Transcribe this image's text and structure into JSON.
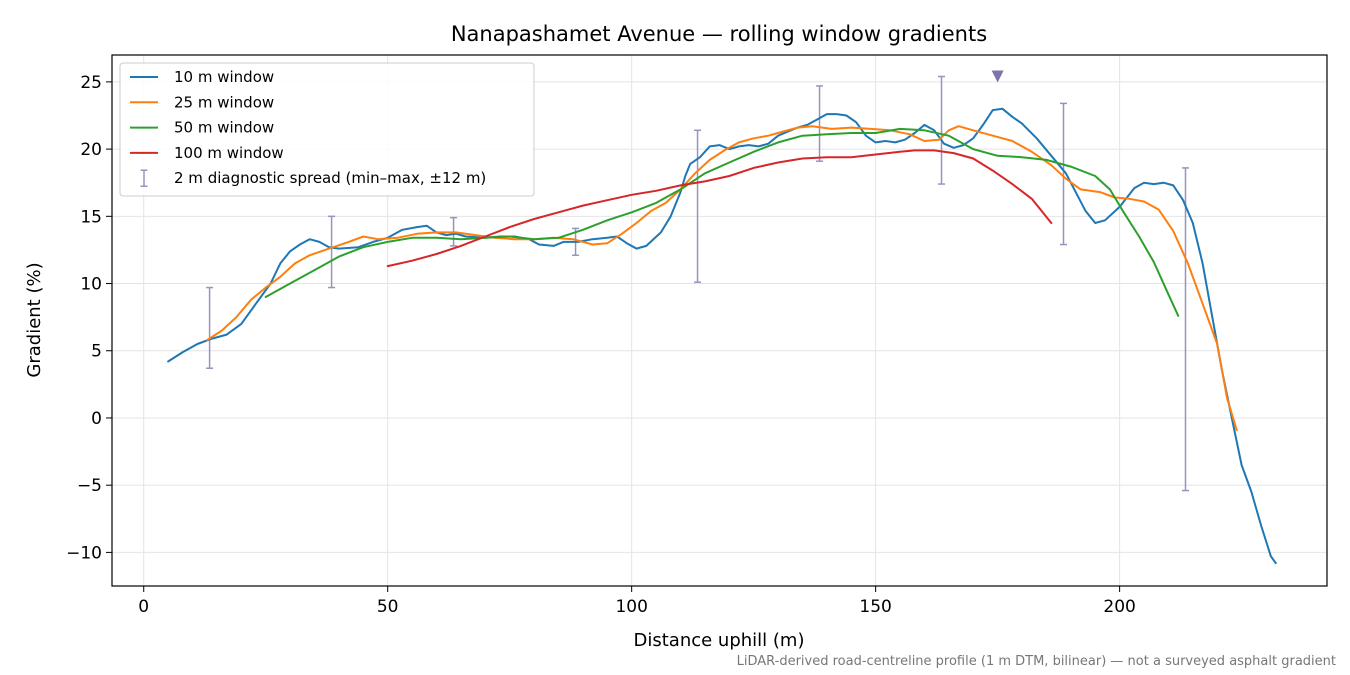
{
  "chart_data": {
    "type": "line",
    "title": "Nanapashamet Avenue — rolling window gradients",
    "xlabel": "Distance uphill (m)",
    "ylabel": "Gradient (%)",
    "xlim": [
      -6.5,
      242.5
    ],
    "ylim": [
      -12.5,
      27
    ],
    "x_ticks": [
      0,
      50,
      100,
      150,
      200
    ],
    "y_ticks": [
      -10,
      -5,
      0,
      5,
      10,
      15,
      20,
      25
    ],
    "x_tick_labels": [
      "0",
      "50",
      "100",
      "150",
      "200"
    ],
    "y_tick_labels": [
      "−10",
      "−5",
      "0",
      "5",
      "10",
      "15",
      "20",
      "25"
    ],
    "grid": true,
    "legend_position": "top-left",
    "series": [
      {
        "name": "10 m window",
        "color": "#1f77b4",
        "points": [
          [
            5,
            4.2
          ],
          [
            8,
            4.9
          ],
          [
            11,
            5.5
          ],
          [
            14,
            5.9
          ],
          [
            17,
            6.2
          ],
          [
            20,
            7.0
          ],
          [
            23,
            8.5
          ],
          [
            26,
            10.0
          ],
          [
            28,
            11.5
          ],
          [
            30,
            12.4
          ],
          [
            32,
            12.9
          ],
          [
            34,
            13.3
          ],
          [
            36,
            13.1
          ],
          [
            38,
            12.7
          ],
          [
            40,
            12.6
          ],
          [
            44,
            12.7
          ],
          [
            47,
            13.1
          ],
          [
            50,
            13.4
          ],
          [
            53,
            14.0
          ],
          [
            56,
            14.2
          ],
          [
            58,
            14.3
          ],
          [
            60,
            13.8
          ],
          [
            62,
            13.6
          ],
          [
            64,
            13.7
          ],
          [
            66,
            13.5
          ],
          [
            70,
            13.4
          ],
          [
            73,
            13.5
          ],
          [
            76,
            13.5
          ],
          [
            79,
            13.3
          ],
          [
            81,
            12.9
          ],
          [
            84,
            12.8
          ],
          [
            86,
            13.1
          ],
          [
            89,
            13.1
          ],
          [
            92,
            13.3
          ],
          [
            95,
            13.4
          ],
          [
            97,
            13.5
          ],
          [
            99,
            13.0
          ],
          [
            101,
            12.6
          ],
          [
            103,
            12.8
          ],
          [
            106,
            13.8
          ],
          [
            108,
            15.0
          ],
          [
            110,
            16.8
          ],
          [
            111,
            18.0
          ],
          [
            112,
            18.9
          ],
          [
            114,
            19.4
          ],
          [
            116,
            20.2
          ],
          [
            118,
            20.3
          ],
          [
            120,
            20.0
          ],
          [
            122,
            20.2
          ],
          [
            124,
            20.3
          ],
          [
            126,
            20.2
          ],
          [
            128,
            20.4
          ],
          [
            130,
            21.0
          ],
          [
            132,
            21.3
          ],
          [
            134,
            21.6
          ],
          [
            136,
            21.8
          ],
          [
            138,
            22.2
          ],
          [
            140,
            22.6
          ],
          [
            142,
            22.6
          ],
          [
            144,
            22.5
          ],
          [
            146,
            22.0
          ],
          [
            148,
            21.0
          ],
          [
            150,
            20.5
          ],
          [
            152,
            20.6
          ],
          [
            154,
            20.5
          ],
          [
            156,
            20.7
          ],
          [
            158,
            21.2
          ],
          [
            160,
            21.8
          ],
          [
            162,
            21.4
          ],
          [
            164,
            20.4
          ],
          [
            166,
            20.1
          ],
          [
            168,
            20.3
          ],
          [
            170,
            20.8
          ],
          [
            172,
            21.8
          ],
          [
            174,
            22.9
          ],
          [
            176,
            23.0
          ],
          [
            178,
            22.4
          ],
          [
            180,
            21.9
          ],
          [
            183,
            20.8
          ],
          [
            186,
            19.5
          ],
          [
            189,
            18.2
          ],
          [
            191,
            16.8
          ],
          [
            193,
            15.4
          ],
          [
            195,
            14.5
          ],
          [
            197,
            14.7
          ],
          [
            200,
            15.7
          ],
          [
            203,
            17.1
          ],
          [
            205,
            17.5
          ],
          [
            207,
            17.4
          ],
          [
            209,
            17.5
          ],
          [
            211,
            17.3
          ],
          [
            213,
            16.2
          ],
          [
            215,
            14.5
          ],
          [
            217,
            11.5
          ],
          [
            219,
            7.5
          ],
          [
            221,
            3.5
          ],
          [
            223,
            0.0
          ],
          [
            225,
            -3.5
          ],
          [
            227,
            -5.5
          ],
          [
            229,
            -8.0
          ],
          [
            231,
            -10.3
          ],
          [
            232,
            -10.8
          ]
        ]
      },
      {
        "name": "25 m window",
        "color": "#ff7f0e",
        "points": [
          [
            13,
            5.8
          ],
          [
            16,
            6.5
          ],
          [
            19,
            7.5
          ],
          [
            22,
            8.8
          ],
          [
            25,
            9.7
          ],
          [
            28,
            10.5
          ],
          [
            31,
            11.5
          ],
          [
            34,
            12.1
          ],
          [
            38,
            12.6
          ],
          [
            42,
            13.1
          ],
          [
            45,
            13.5
          ],
          [
            48,
            13.3
          ],
          [
            52,
            13.4
          ],
          [
            56,
            13.7
          ],
          [
            60,
            13.8
          ],
          [
            64,
            13.8
          ],
          [
            68,
            13.6
          ],
          [
            72,
            13.4
          ],
          [
            76,
            13.3
          ],
          [
            80,
            13.3
          ],
          [
            84,
            13.4
          ],
          [
            88,
            13.3
          ],
          [
            92,
            12.9
          ],
          [
            95,
            13.0
          ],
          [
            98,
            13.7
          ],
          [
            101,
            14.5
          ],
          [
            104,
            15.4
          ],
          [
            107,
            16.0
          ],
          [
            110,
            17.0
          ],
          [
            113,
            18.2
          ],
          [
            116,
            19.2
          ],
          [
            119,
            19.9
          ],
          [
            122,
            20.5
          ],
          [
            125,
            20.8
          ],
          [
            128,
            21.0
          ],
          [
            131,
            21.3
          ],
          [
            134,
            21.6
          ],
          [
            137,
            21.7
          ],
          [
            141,
            21.5
          ],
          [
            145,
            21.6
          ],
          [
            149,
            21.5
          ],
          [
            153,
            21.4
          ],
          [
            157,
            21.1
          ],
          [
            160,
            20.6
          ],
          [
            163,
            20.7
          ],
          [
            165,
            21.4
          ],
          [
            167,
            21.7
          ],
          [
            170,
            21.4
          ],
          [
            174,
            21.0
          ],
          [
            178,
            20.6
          ],
          [
            182,
            19.8
          ],
          [
            186,
            18.8
          ],
          [
            189,
            17.8
          ],
          [
            192,
            17.0
          ],
          [
            196,
            16.8
          ],
          [
            199,
            16.4
          ],
          [
            202,
            16.3
          ],
          [
            205,
            16.1
          ],
          [
            208,
            15.5
          ],
          [
            211,
            13.9
          ],
          [
            214,
            11.5
          ],
          [
            217,
            8.5
          ],
          [
            220,
            5.5
          ],
          [
            222,
            1.5
          ],
          [
            224,
            -0.9
          ]
        ]
      },
      {
        "name": "50 m window",
        "color": "#2ca02c",
        "points": [
          [
            25,
            9.0
          ],
          [
            30,
            10.0
          ],
          [
            35,
            11.0
          ],
          [
            40,
            12.0
          ],
          [
            45,
            12.7
          ],
          [
            50,
            13.1
          ],
          [
            55,
            13.4
          ],
          [
            60,
            13.4
          ],
          [
            65,
            13.3
          ],
          [
            70,
            13.4
          ],
          [
            75,
            13.5
          ],
          [
            80,
            13.3
          ],
          [
            85,
            13.4
          ],
          [
            90,
            14.0
          ],
          [
            95,
            14.7
          ],
          [
            100,
            15.3
          ],
          [
            105,
            16.0
          ],
          [
            110,
            17.0
          ],
          [
            115,
            18.2
          ],
          [
            120,
            19.0
          ],
          [
            125,
            19.8
          ],
          [
            130,
            20.5
          ],
          [
            135,
            21.0
          ],
          [
            140,
            21.1
          ],
          [
            145,
            21.2
          ],
          [
            150,
            21.2
          ],
          [
            155,
            21.5
          ],
          [
            160,
            21.4
          ],
          [
            165,
            21.0
          ],
          [
            170,
            20.0
          ],
          [
            175,
            19.5
          ],
          [
            180,
            19.4
          ],
          [
            185,
            19.2
          ],
          [
            190,
            18.7
          ],
          [
            195,
            18.0
          ],
          [
            198,
            17.0
          ],
          [
            201,
            15.2
          ],
          [
            204,
            13.5
          ],
          [
            207,
            11.6
          ],
          [
            210,
            9.2
          ],
          [
            212,
            7.6
          ]
        ]
      },
      {
        "name": "100 m window",
        "color": "#d62728",
        "points": [
          [
            50,
            11.3
          ],
          [
            55,
            11.7
          ],
          [
            60,
            12.2
          ],
          [
            65,
            12.8
          ],
          [
            70,
            13.5
          ],
          [
            75,
            14.2
          ],
          [
            80,
            14.8
          ],
          [
            85,
            15.3
          ],
          [
            90,
            15.8
          ],
          [
            95,
            16.2
          ],
          [
            100,
            16.6
          ],
          [
            105,
            16.9
          ],
          [
            110,
            17.3
          ],
          [
            115,
            17.6
          ],
          [
            120,
            18.0
          ],
          [
            125,
            18.6
          ],
          [
            130,
            19.0
          ],
          [
            135,
            19.3
          ],
          [
            140,
            19.4
          ],
          [
            145,
            19.4
          ],
          [
            150,
            19.6
          ],
          [
            155,
            19.8
          ],
          [
            158,
            19.9
          ],
          [
            162,
            19.9
          ],
          [
            166,
            19.7
          ],
          [
            170,
            19.3
          ],
          [
            174,
            18.4
          ],
          [
            178,
            17.4
          ],
          [
            182,
            16.3
          ],
          [
            186,
            14.5
          ]
        ]
      }
    ],
    "diagnostic_spread": {
      "name": "2 m diagnostic spread (min–max, ±12 m)",
      "color": "#9893bd",
      "ranges": [
        [
          13.5,
          3.7,
          9.7
        ],
        [
          38.5,
          9.7,
          15.0
        ],
        [
          63.5,
          12.8,
          14.9
        ],
        [
          88.5,
          12.1,
          14.1
        ],
        [
          113.5,
          10.1,
          21.4
        ],
        [
          138.5,
          19.1,
          24.7
        ],
        [
          163.5,
          17.4,
          25.4
        ],
        [
          188.5,
          12.9,
          23.4
        ],
        [
          213.5,
          -5.4,
          18.6
        ]
      ]
    },
    "peak_marker": {
      "x": 175,
      "y": 25.4,
      "color": "#7f73ad"
    },
    "note": "LiDAR-derived road-centreline profile (1 m DTM, bilinear) — not a surveyed asphalt gradient"
  }
}
